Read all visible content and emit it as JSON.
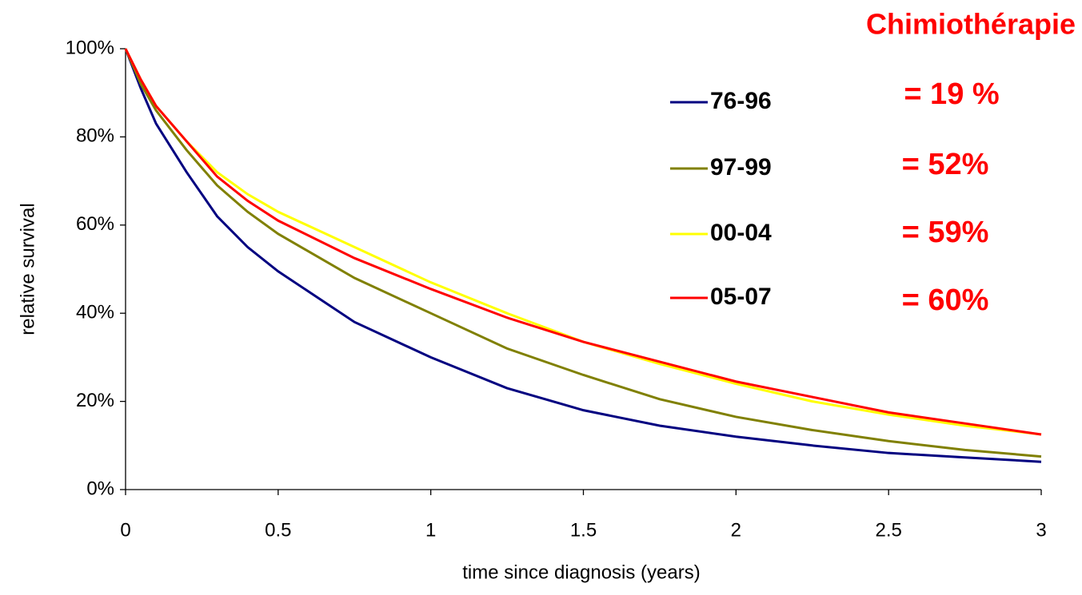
{
  "chart_data": {
    "type": "line",
    "title": "Chimiothérapie",
    "x_label": "time since diagnosis (years)",
    "y_label": "relative survival",
    "x": [
      0,
      0.05,
      0.1,
      0.2,
      0.3,
      0.4,
      0.5,
      0.75,
      1,
      1.25,
      1.5,
      1.75,
      2,
      2.25,
      2.5,
      2.75,
      3
    ],
    "series": [
      {
        "name": "76-96",
        "color": "#000080",
        "values": [
          100,
          91,
          83,
          72,
          62,
          55,
          49.5,
          38,
          30,
          23,
          18,
          14.5,
          12,
          10,
          8.3,
          7.3,
          6.3
        ]
      },
      {
        "name": "97-99",
        "color": "#808000",
        "values": [
          100,
          92,
          86,
          77,
          69,
          63,
          58,
          48,
          40,
          32,
          26,
          20.5,
          16.5,
          13.5,
          11,
          9,
          7.5
        ]
      },
      {
        "name": "00-04",
        "color": "#ffff00",
        "values": [
          100,
          93,
          87,
          79,
          72,
          67,
          63,
          55,
          47,
          40,
          33.5,
          28.5,
          24,
          20,
          17,
          14.5,
          12.5
        ]
      },
      {
        "name": "05-07",
        "color": "#ff0000",
        "values": [
          100,
          93,
          87,
          79,
          71,
          65.5,
          61,
          52.5,
          45.5,
          39,
          33.5,
          29,
          24.5,
          21,
          17.5,
          15,
          12.5
        ]
      }
    ],
    "annotations": [
      "= 19 %",
      "= 52%",
      "= 59%",
      "= 60%"
    ],
    "annotation_color": "#ff0000",
    "xlim": [
      0,
      3
    ],
    "xticks": [
      0,
      0.5,
      1,
      1.5,
      2,
      2.5,
      3
    ],
    "ylim": [
      0,
      100
    ],
    "yticks": [
      {
        "value": 0,
        "label": "0%"
      },
      {
        "value": 20,
        "label": "20%"
      },
      {
        "value": 40,
        "label": "40%"
      },
      {
        "value": 60,
        "label": "60%"
      },
      {
        "value": 80,
        "label": "80%"
      },
      {
        "value": 100,
        "label": "100%"
      }
    ],
    "grid": false
  }
}
